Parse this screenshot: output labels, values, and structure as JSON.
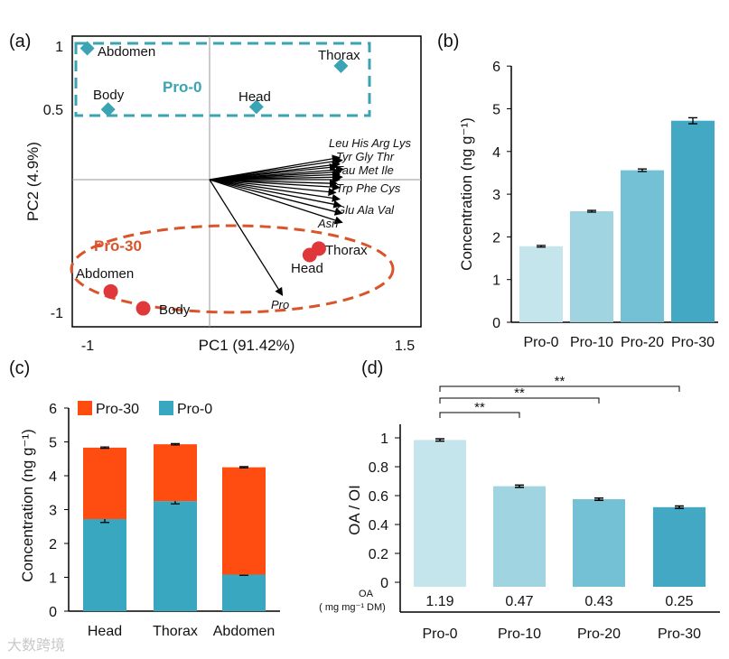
{
  "panels": {
    "a": "(a)",
    "b": "(b)",
    "c": "(c)",
    "d": "(d)"
  },
  "watermark": "大数跨境",
  "chart_data": [
    {
      "id": "a",
      "type": "scatter",
      "xlabel": "PC1 (91.42%)",
      "ylabel": "PC2 (4.9%)",
      "xticks": [
        -1,
        1.5
      ],
      "yticks": [
        1,
        0.5,
        -1
      ],
      "xlim": [
        -1,
        1.5
      ],
      "ylim": [
        -1,
        1
      ],
      "groups": [
        {
          "name": "Pro-0",
          "color": "#3aa3b4",
          "marker": "diamond",
          "points": [
            {
              "label": "Abdomen",
              "x": -0.94,
              "y": 1.01
            },
            {
              "label": "Body",
              "x": -0.78,
              "y": 0.54
            },
            {
              "label": "Head",
              "x": 0.36,
              "y": 0.56
            },
            {
              "label": "Thorax",
              "x": 1.01,
              "y": 0.875
            }
          ]
        },
        {
          "name": "Pro-30",
          "color": "#e0373a",
          "marker": "circle",
          "points": [
            {
              "label": "Abdomen",
              "x": -0.76,
              "y": -0.86
            },
            {
              "label": "Body",
              "x": -0.51,
              "y": -0.99
            },
            {
              "label": "Head",
              "x": 0.77,
              "y": -0.58
            },
            {
              "label": "Thorax",
              "x": 0.84,
              "y": -0.53
            }
          ]
        }
      ],
      "loading_labels": [
        "Leu His Arg Lys",
        "Tyr Gly Thr",
        "Tau Met Ile",
        "Trp Phe Cys",
        "Glu Ala Val",
        "Asn",
        "Pro"
      ],
      "vectors": [
        {
          "x": 1.0,
          "y": 0.17
        },
        {
          "x": 1.02,
          "y": 0.15
        },
        {
          "x": 1.0,
          "y": 0.12
        },
        {
          "x": 0.98,
          "y": 0.1
        },
        {
          "x": 1.03,
          "y": 0.08
        },
        {
          "x": 1.01,
          "y": 0.06
        },
        {
          "x": 1.0,
          "y": 0.04
        },
        {
          "x": 1.02,
          "y": 0.02
        },
        {
          "x": 1.0,
          "y": 0.0
        },
        {
          "x": 0.98,
          "y": -0.03
        },
        {
          "x": 1.0,
          "y": -0.06
        },
        {
          "x": 0.97,
          "y": -0.1
        },
        {
          "x": 1.0,
          "y": -0.15
        },
        {
          "x": 1.01,
          "y": -0.2
        },
        {
          "x": 1.02,
          "y": -0.26
        },
        {
          "x": 1.02,
          "y": -0.33
        },
        {
          "x": 0.56,
          "y": -0.89
        }
      ]
    },
    {
      "id": "b",
      "type": "bar",
      "categories": [
        "Pro-0",
        "Pro-10",
        "Pro-20",
        "Pro-30"
      ],
      "values": [
        1.78,
        2.6,
        3.56,
        4.72
      ],
      "errors": [
        0.02,
        0.02,
        0.03,
        0.07
      ],
      "colors": [
        "#c5e5ec",
        "#9fd4e0",
        "#74c0d5",
        "#42a8c4"
      ],
      "ylabel": "Concentration (ng g⁻¹)",
      "ylim": [
        0,
        6
      ],
      "yticks": [
        0,
        1,
        2,
        3,
        4,
        5,
        6
      ]
    },
    {
      "id": "c",
      "type": "bar",
      "stacked": true,
      "categories": [
        "Head",
        "Thorax",
        "Abdomen"
      ],
      "series": [
        {
          "name": "Pro-0",
          "color": "#3aa7c0",
          "values": [
            2.72,
            3.25,
            1.08
          ],
          "errors": [
            0.1,
            0.08,
            0.02
          ]
        },
        {
          "name": "Pro-30",
          "color": "#ff4d12",
          "values": [
            2.11,
            1.68,
            3.17
          ],
          "errors": [
            0.02,
            0.02,
            0.02
          ]
        }
      ],
      "legend": [
        "Pro-30",
        "Pro-0"
      ],
      "ylabel": "Concentration (ng g⁻¹)",
      "ylim": [
        0,
        6
      ],
      "yticks": [
        0,
        1,
        2,
        3,
        4,
        5,
        6
      ]
    },
    {
      "id": "d",
      "type": "bar",
      "categories": [
        "Pro-0",
        "Pro-10",
        "Pro-20",
        "Pro-30"
      ],
      "values": [
        0.985,
        0.665,
        0.575,
        0.52
      ],
      "errors": [
        0.008,
        0.008,
        0.008,
        0.008
      ],
      "colors": [
        "#c5e5ec",
        "#9fd4e0",
        "#74c0d5",
        "#42a8c4"
      ],
      "ylabel": "OA / OI",
      "ylim": [
        0,
        1
      ],
      "yticks": [
        "0",
        "0.2",
        "0.4",
        "0.6",
        "0.8",
        "1"
      ],
      "oa_label": "OA",
      "oa_unit": "( mg mg⁻¹ DM)",
      "oa_values": [
        "1.19",
        "0.47",
        "0.43",
        "0.25"
      ],
      "significance": [
        {
          "from": "Pro-0",
          "to": "Pro-30",
          "label": "**"
        },
        {
          "from": "Pro-0",
          "to": "Pro-20",
          "label": "**"
        },
        {
          "from": "Pro-0",
          "to": "Pro-10",
          "label": "**"
        }
      ]
    }
  ]
}
